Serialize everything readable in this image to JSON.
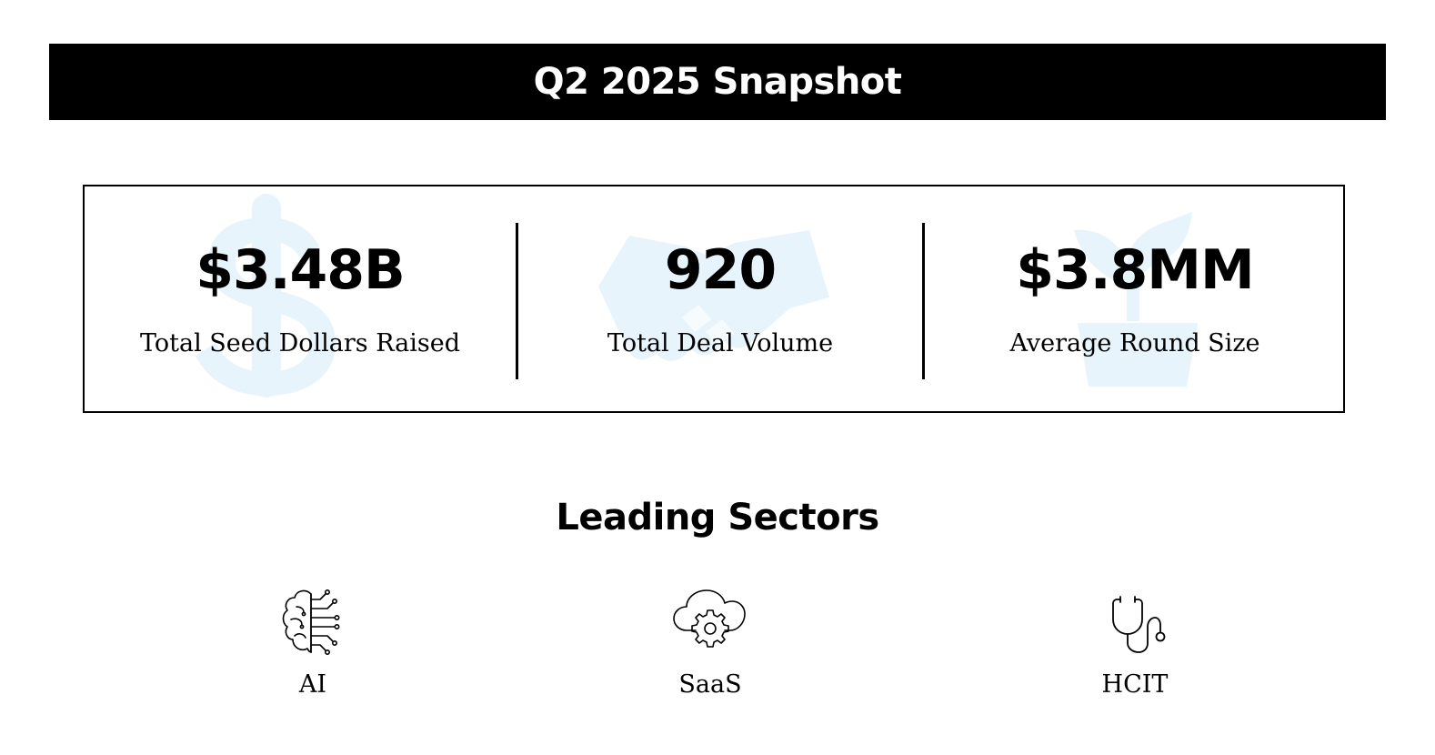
{
  "header": {
    "title": "Q2 2025 Snapshot"
  },
  "stats": [
    {
      "value": "$3.48B",
      "label": "Total Seed Dollars Raised",
      "watermark_icon": "dollar-sign-icon"
    },
    {
      "value": "920",
      "label": "Total Deal Volume",
      "watermark_icon": "handshake-icon"
    },
    {
      "value": "$3.8MM",
      "label": "Average Round Size",
      "watermark_icon": "plant-pot-icon"
    }
  ],
  "sectors": {
    "title": "Leading Sectors",
    "items": [
      {
        "label": "AI",
        "icon": "ai-brain-circuit-icon"
      },
      {
        "label": "SaaS",
        "icon": "cloud-gear-icon"
      },
      {
        "label": "HCIT",
        "icon": "stethoscope-icon"
      }
    ]
  },
  "colors": {
    "banner_background": "#000000",
    "banner_text": "#ffffff",
    "watermark": "#e8f4fc",
    "text": "#000000",
    "background": "#ffffff"
  }
}
